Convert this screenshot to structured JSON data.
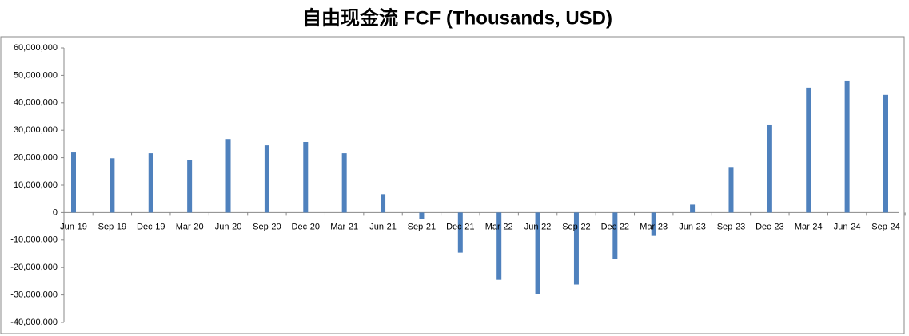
{
  "chart_data": {
    "type": "bar",
    "title": "自由现金流 FCF (Thousands, USD)",
    "categories": [
      "Jun-19",
      "Sep-19",
      "Dec-19",
      "Mar-20",
      "Jun-20",
      "Sep-20",
      "Dec-20",
      "Mar-21",
      "Jun-21",
      "Sep-21",
      "Dec-21",
      "Mar-22",
      "Jun-22",
      "Sep-22",
      "Dec-22",
      "Mar-23",
      "Jun-23",
      "Sep-23",
      "Dec-23",
      "Mar-24",
      "Jun-24",
      "Sep-24"
    ],
    "values": [
      21900000,
      19800000,
      21600000,
      19200000,
      26800000,
      24500000,
      25700000,
      21600000,
      6700000,
      -2300000,
      -14600000,
      -24500000,
      -29700000,
      -26200000,
      -16900000,
      -8500000,
      2900000,
      16600000,
      32100000,
      45500000,
      48100000,
      42900000
    ],
    "color": "#4f81bd",
    "ylim": [
      -40000000,
      60000000
    ],
    "yticks": [
      {
        "value": -40000000,
        "label": "-40,000,000"
      },
      {
        "value": -30000000,
        "label": "-30,000,000"
      },
      {
        "value": -20000000,
        "label": "-20,000,000"
      },
      {
        "value": -10000000,
        "label": "-10,000,000"
      },
      0,
      {
        "value": 10000000,
        "label": "10,000,000"
      },
      {
        "value": 20000000,
        "label": "20,000,000"
      },
      {
        "value": 30000000,
        "label": "30,000,000"
      },
      {
        "value": 40000000,
        "label": "40,000,000"
      },
      {
        "value": 50000000,
        "label": "50,000,000"
      },
      {
        "value": 60000000,
        "label": "60,000,000"
      }
    ],
    "grid": false
  }
}
